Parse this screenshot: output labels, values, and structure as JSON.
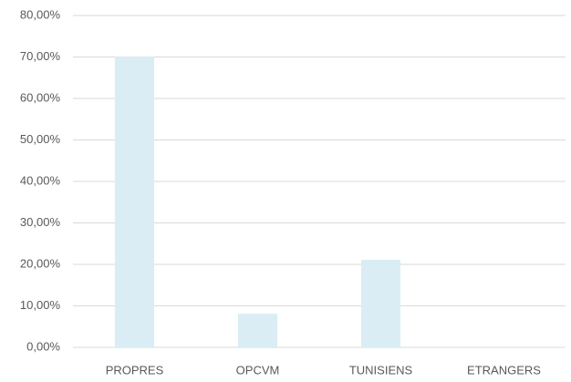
{
  "chart_data": {
    "type": "bar",
    "categories": [
      "PROPRES",
      "OPCVM",
      "TUNISIENS",
      "ETRANGERS"
    ],
    "values": [
      70.1,
      8.1,
      21.1,
      0
    ],
    "color": "#daedf4",
    "ylim": [
      0,
      80
    ],
    "yticks": [
      {
        "value": 0,
        "label": "0,00%"
      },
      {
        "value": 10,
        "label": "10,00%"
      },
      {
        "value": 20,
        "label": "20,00%"
      },
      {
        "value": 30,
        "label": "30,00%"
      },
      {
        "value": 40,
        "label": "40,00%"
      },
      {
        "value": 50,
        "label": "50,00%"
      },
      {
        "value": 60,
        "label": "60,00%"
      },
      {
        "value": 70,
        "label": "70,00%"
      },
      {
        "value": 80,
        "label": "80,00%"
      }
    ],
    "grid": true
  }
}
